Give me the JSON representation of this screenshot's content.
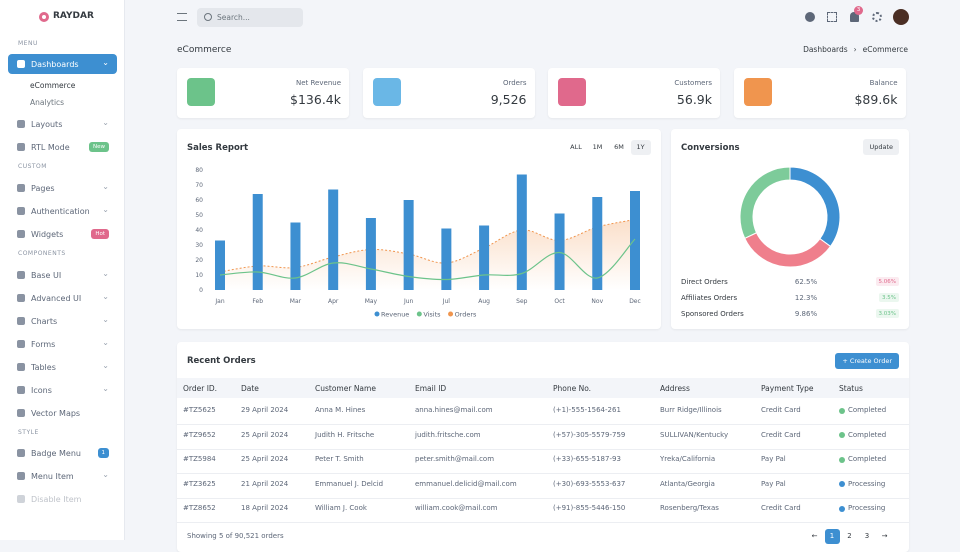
{
  "logo": "RAYDAR",
  "search_placeholder": "Search...",
  "notification_count": "3",
  "sidebar": [
    {
      "section": "MENU"
    },
    {
      "label": "Dashboards",
      "active": true,
      "expandable": true,
      "children": [
        "eCommerce",
        "Analytics"
      ]
    },
    {
      "label": "Layouts",
      "expandable": true
    },
    {
      "label": "RTL Mode",
      "badge": "New",
      "badge_color": "#6cc38a"
    },
    {
      "section": "CUSTOM"
    },
    {
      "label": "Pages",
      "expandable": true
    },
    {
      "label": "Authentication",
      "expandable": true
    },
    {
      "label": "Widgets",
      "badge": "Hot",
      "badge_color": "#e0698c"
    },
    {
      "section": "COMPONENTS"
    },
    {
      "label": "Base UI",
      "expandable": true
    },
    {
      "label": "Advanced UI",
      "expandable": true
    },
    {
      "label": "Charts",
      "expandable": true
    },
    {
      "label": "Forms",
      "expandable": true
    },
    {
      "label": "Tables",
      "expandable": true
    },
    {
      "label": "Icons",
      "expandable": true
    },
    {
      "label": "Vector Maps"
    },
    {
      "section": "STYLE"
    },
    {
      "label": "Badge Menu",
      "badge": "1",
      "badge_color": "#3d8fd1"
    },
    {
      "label": "Menu Item",
      "expandable": true
    },
    {
      "label": "Disable Item",
      "disabled": true
    }
  ],
  "page_title": "eCommerce",
  "breadcrumb": [
    "Dashboards",
    "eCommerce"
  ],
  "stats": [
    {
      "label": "Net Revenue",
      "value": "$136.4k",
      "color": "#6cc38a"
    },
    {
      "label": "Orders",
      "value": "9,526",
      "color": "#6ab7e6"
    },
    {
      "label": "Customers",
      "value": "56.9k",
      "color": "#e0698c"
    },
    {
      "label": "Balance",
      "value": "$89.6k",
      "color": "#f0954e"
    }
  ],
  "sales_report": {
    "title": "Sales Report",
    "ranges": [
      "ALL",
      "1M",
      "6M",
      "1Y"
    ],
    "active_range": 3
  },
  "conversions": {
    "title": "Conversions",
    "button": "Update",
    "rows": [
      {
        "name": "Direct Orders",
        "value": "62.5%",
        "change": "5.06%",
        "change_color": "#e0698c"
      },
      {
        "name": "Affiliates Orders",
        "value": "12.3%",
        "change": "3.5%",
        "change_color": "#6cc38a"
      },
      {
        "name": "Sponsored Orders",
        "value": "9.86%",
        "change": "3.03%",
        "change_color": "#6cc38a"
      }
    ]
  },
  "chart_data": [
    {
      "type": "bar_line",
      "categories": [
        "Jan",
        "Feb",
        "Mar",
        "Apr",
        "May",
        "Jun",
        "Jul",
        "Aug",
        "Sep",
        "Oct",
        "Nov",
        "Dec"
      ],
      "ylim": [
        0,
        80
      ],
      "yticks": [
        0,
        10,
        20,
        30,
        40,
        50,
        60,
        70,
        80
      ],
      "series": [
        {
          "name": "Revenue",
          "color": "#3d8fd1",
          "kind": "bar",
          "values": [
            33,
            64,
            45,
            67,
            48,
            60,
            41,
            43,
            77,
            51,
            62,
            66
          ]
        },
        {
          "name": "Visits",
          "color": "#6cc38a",
          "kind": "line",
          "values": [
            10,
            12,
            8,
            18,
            14,
            9,
            7,
            10,
            11,
            25,
            8,
            34
          ]
        },
        {
          "name": "Orders",
          "color": "#f0954e",
          "kind": "area",
          "values": [
            12,
            16,
            15,
            22,
            27,
            24,
            18,
            28,
            40,
            33,
            42,
            47
          ]
        }
      ]
    },
    {
      "type": "donut",
      "values": [
        35,
        33,
        32
      ],
      "colors": [
        "#3d8fd1",
        "#ef7f8c",
        "#7dcb9a"
      ]
    }
  ],
  "orders": {
    "title": "Recent Orders",
    "button": "+ Create Order",
    "columns": [
      "Order ID.",
      "Date",
      "Customer Name",
      "Email ID",
      "Phone No.",
      "Address",
      "Payment Type",
      "Status"
    ],
    "rows": [
      [
        "#TZ5625",
        "29 April 2024",
        "Anna M. Hines",
        "anna.hines@mail.com",
        "(+1)-555-1564-261",
        "Burr Ridge/Illinois",
        "Credit Card",
        "Completed"
      ],
      [
        "#TZ9652",
        "25 April 2024",
        "Judith H. Fritsche",
        "judith.fritsche.com",
        "(+57)-305-5579-759",
        "SULLIVAN/Kentucky",
        "Credit Card",
        "Completed"
      ],
      [
        "#TZ5984",
        "25 April 2024",
        "Peter T. Smith",
        "peter.smith@mail.com",
        "(+33)-655-5187-93",
        "Yreka/California",
        "Pay Pal",
        "Completed"
      ],
      [
        "#TZ3625",
        "21 April 2024",
        "Emmanuel J. Delcid",
        "emmanuel.delicid@mail.com",
        "(+30)-693-5553-637",
        "Atlanta/Georgia",
        "Pay Pal",
        "Processing"
      ],
      [
        "#TZ8652",
        "18 April 2024",
        "William J. Cook",
        "william.cook@mail.com",
        "(+91)-855-5446-150",
        "Rosenberg/Texas",
        "Credit Card",
        "Processing"
      ]
    ],
    "status_colors": [
      "#6cc38a",
      "#6cc38a",
      "#6cc38a",
      "#3d8fd1",
      "#3d8fd1"
    ],
    "footer": "Showing 5 of 90,521 orders",
    "pages": [
      "←",
      "1",
      "2",
      "3",
      "→"
    ],
    "active_page": 1
  }
}
